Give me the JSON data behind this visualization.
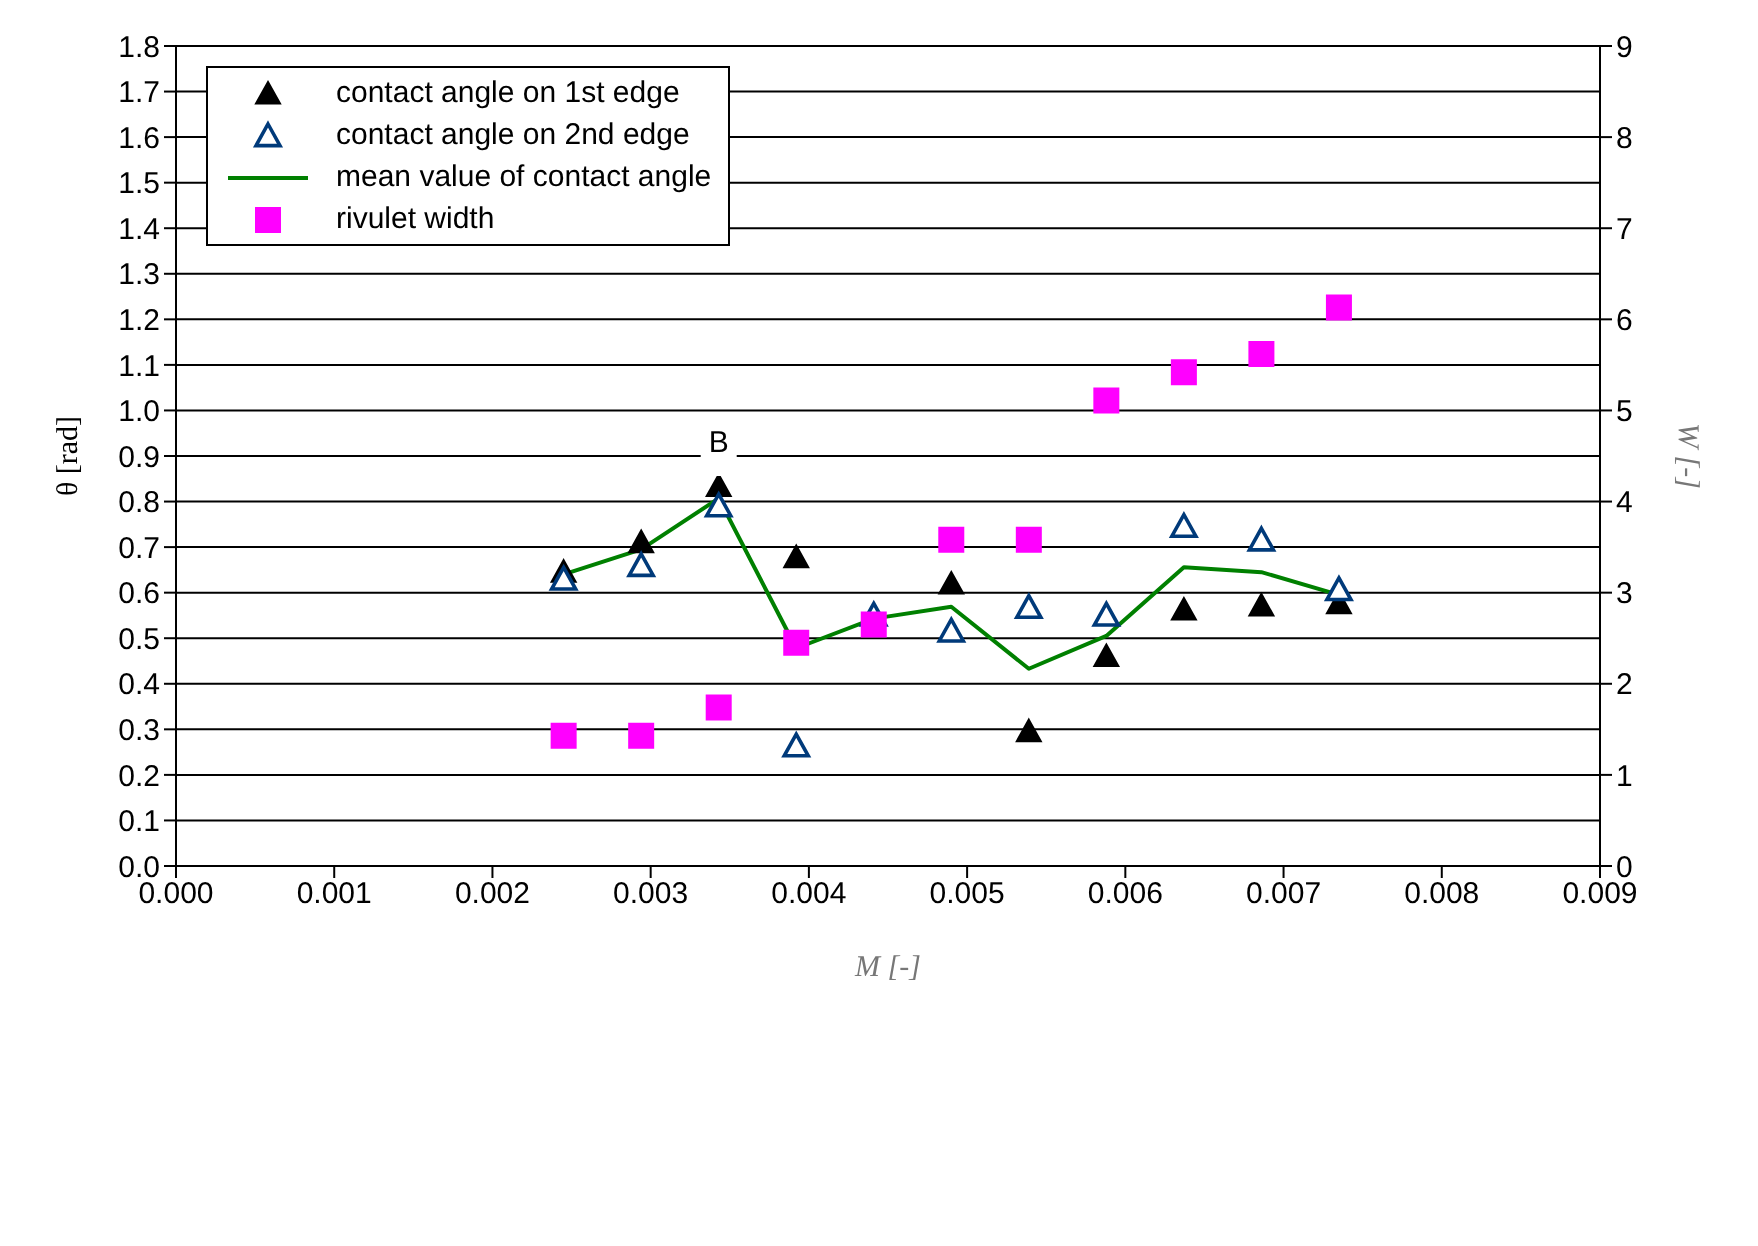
{
  "chart_data": {
    "type": "scatter",
    "xlabel": "M [-]",
    "ylabel": "θ [rad]",
    "y2label": "W [-]",
    "x": [
      0.00245,
      0.00294,
      0.00343,
      0.00392,
      0.00441,
      0.0049,
      0.00539,
      0.00588,
      0.00637,
      0.00686,
      0.00735
    ],
    "series": [
      {
        "name": "contact angle on 1st edge",
        "color": "#000000",
        "marker": "triangle",
        "values": [
          0.645,
          0.71,
          0.833,
          0.677,
          null,
          0.619,
          0.295,
          0.46,
          0.562,
          0.571,
          0.576
        ]
      },
      {
        "name": "contact angle on 2nd edge",
        "color": "#003a7a",
        "marker": "triangle",
        "values": [
          0.629,
          0.659,
          0.79,
          0.263,
          0.55,
          0.515,
          0.567,
          0.55,
          0.745,
          0.715,
          0.606
        ]
      },
      {
        "name": "mean value of contact angle",
        "color": "#008000",
        "type": "line",
        "marker": "none",
        "values": [
          0.64,
          0.695,
          0.807,
          0.478,
          0.543,
          0.569,
          0.433,
          0.505,
          0.656,
          0.645,
          0.595
        ]
      },
      {
        "name": "rivulet width",
        "color": "#ff00ff",
        "marker": "square",
        "axis": "y2",
        "values": [
          1.43,
          1.43,
          1.74,
          2.45,
          2.65,
          3.58,
          3.58,
          5.11,
          5.42,
          5.62,
          6.13
        ]
      }
    ],
    "xlim": [
      0,
      0.009
    ],
    "xticks": [
      {
        "value": 0,
        "label": "0.000"
      },
      {
        "value": 0.001,
        "label": "0.001"
      },
      {
        "value": 0.002,
        "label": "0.002"
      },
      {
        "value": 0.003,
        "label": "0.003"
      },
      {
        "value": 0.004,
        "label": "0.004"
      },
      {
        "value": 0.005,
        "label": "0.005"
      },
      {
        "value": 0.006,
        "label": "0.006"
      },
      {
        "value": 0.007,
        "label": "0.007"
      },
      {
        "value": 0.008,
        "label": "0.008"
      },
      {
        "value": 0.009,
        "label": "0.009"
      }
    ],
    "ylim": [
      0,
      1.8
    ],
    "yticks": [
      {
        "value": 0,
        "label": "0.0"
      },
      0.1,
      0.2,
      0.3,
      0.4,
      0.5,
      0.6,
      0.7,
      0.8,
      0.9,
      {
        "value": 1,
        "label": "1.0"
      },
      1.1,
      1.2,
      1.3,
      1.4,
      1.5,
      1.6,
      1.7,
      1.8
    ],
    "y2lim": [
      0,
      9
    ],
    "y2ticks": [
      0,
      1,
      2,
      3,
      4,
      5,
      6,
      7,
      8,
      9
    ],
    "grid": "y",
    "legend": "top left",
    "annotations": [
      {
        "text": "B",
        "x": 0.00343,
        "y": 0.9
      }
    ]
  }
}
